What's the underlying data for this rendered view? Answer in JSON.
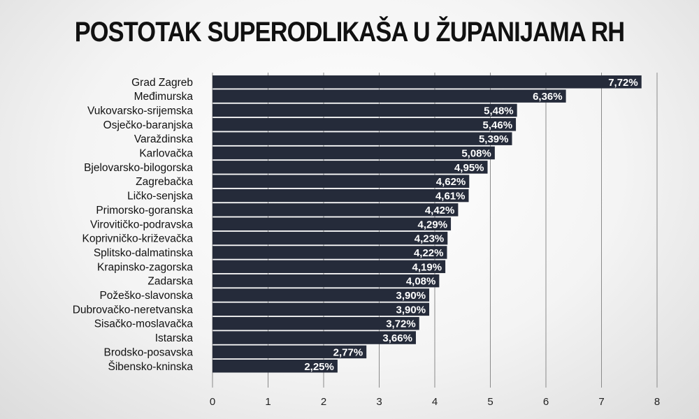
{
  "chart_data": {
    "type": "bar",
    "orientation": "horizontal",
    "title": "POSTOTAK SUPERODLIKAŠA U ŽUPANIJAMA RH",
    "categories": [
      "Grad Zagreb",
      "Međimurska",
      "Vukovarsko-srijemska",
      "Osječko-baranjska",
      "Varaždinska",
      "Karlovačka",
      "Bjelovarsko-bilogorska",
      "Zagrebačka",
      "Ličko-senjska",
      "Primorsko-goranska",
      "Virovitičko-podravska",
      "Koprivničko-križevačka",
      "Splitsko-dalmatinska",
      "Krapinsko-zagorska",
      "Zadarska",
      "Požeško-slavonska",
      "Dubrovačko-neretvanska",
      "Sisačko-moslavačka",
      "Istarska",
      "Brodsko-posavska",
      "Šibensko-kninska"
    ],
    "values": [
      7.72,
      6.36,
      5.48,
      5.46,
      5.39,
      5.08,
      4.95,
      4.62,
      4.61,
      4.42,
      4.29,
      4.23,
      4.22,
      4.19,
      4.08,
      3.9,
      3.9,
      3.72,
      3.66,
      2.77,
      2.25
    ],
    "value_labels": [
      "7,72%",
      "6,36%",
      "5,48%",
      "5,46%",
      "5,39%",
      "5,08%",
      "4,95%",
      "4,62%",
      "4,61%",
      "4,42%",
      "4,29%",
      "4,23%",
      "4,22%",
      "4,19%",
      "4,08%",
      "3,90%",
      "3,90%",
      "3,72%",
      "3,66%",
      "2,77%",
      "2,25%"
    ],
    "xlim": [
      0,
      8
    ],
    "xticks": [
      "0",
      "1",
      "2",
      "3",
      "4",
      "5",
      "6",
      "7",
      "8"
    ],
    "grid": true,
    "legend": "none",
    "colors": {
      "bar": "#252b3a",
      "grid": "#8a8a8a",
      "text": "#111111",
      "value_text": "#ffffff"
    }
  }
}
